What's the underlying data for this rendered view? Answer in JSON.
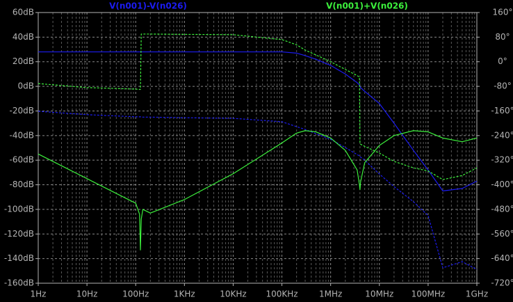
{
  "chart_data": {
    "type": "bode",
    "xscale": "log",
    "grid": true,
    "x": [
      1,
      10,
      100,
      120,
      125,
      130,
      140,
      200,
      1000,
      10000,
      100000,
      200000,
      300000,
      500000,
      1000000,
      2000000,
      3500000,
      3900000,
      4000000,
      4100000,
      5000000,
      10000000,
      20000000,
      50000000,
      100000000,
      200000000,
      500000000,
      1000000000
    ],
    "xlim": [
      1,
      1000000000
    ],
    "xticks": [
      {
        "value": 1,
        "label": "1Hz"
      },
      {
        "value": 10,
        "label": "10Hz"
      },
      {
        "value": 100,
        "label": "100Hz"
      },
      {
        "value": 1000,
        "label": "1KHz"
      },
      {
        "value": 10000,
        "label": "10KHz"
      },
      {
        "value": 100000,
        "label": "100KHz"
      },
      {
        "value": 1000000,
        "label": "1MHz"
      },
      {
        "value": 10000000,
        "label": "10MHz"
      },
      {
        "value": 100000000,
        "label": "100MHz"
      },
      {
        "value": 1000000000,
        "label": "1GHz"
      }
    ],
    "ylim": [
      -160,
      60
    ],
    "yticks": [
      {
        "value": 60,
        "label": "60dB"
      },
      {
        "value": 40,
        "label": "40dB"
      },
      {
        "value": 20,
        "label": "20dB"
      },
      {
        "value": 0,
        "label": "0dB"
      },
      {
        "value": -20,
        "label": "-20dB"
      },
      {
        "value": -40,
        "label": "-40dB"
      },
      {
        "value": -60,
        "label": "-60dB"
      },
      {
        "value": -80,
        "label": "-80dB"
      },
      {
        "value": -100,
        "label": "-100dB"
      },
      {
        "value": -120,
        "label": "-120dB"
      },
      {
        "value": -140,
        "label": "-140dB"
      },
      {
        "value": -160,
        "label": "-160dB"
      }
    ],
    "y2lim": [
      -720,
      160
    ],
    "y2ticks": [
      {
        "value": 160,
        "label": "160°"
      },
      {
        "value": 80,
        "label": "80°"
      },
      {
        "value": 0,
        "label": "0°"
      },
      {
        "value": -80,
        "label": "-80°"
      },
      {
        "value": -160,
        "label": "-160°"
      },
      {
        "value": -240,
        "label": "-240°"
      },
      {
        "value": -320,
        "label": "-320°"
      },
      {
        "value": -400,
        "label": "-400°"
      },
      {
        "value": -480,
        "label": "-480°"
      },
      {
        "value": -560,
        "label": "-560°"
      },
      {
        "value": -640,
        "label": "-640°"
      },
      {
        "value": -720,
        "label": "-720°"
      }
    ],
    "series": [
      {
        "name": "V(n001)-V(n026)",
        "color": "#1c1cf0",
        "values": [
          28,
          28,
          28,
          28,
          28,
          28,
          28,
          28,
          28,
          28,
          28,
          27,
          25,
          22,
          17,
          10,
          3,
          1,
          0,
          -1,
          -4,
          -14,
          -30,
          -52,
          -68,
          -85,
          -83,
          -77
        ],
        "phase": [
          -161,
          -172,
          -179,
          -179,
          -179,
          -179,
          -180,
          -180,
          -182,
          -184,
          -195,
          -211,
          -220,
          -234,
          -252,
          -279,
          -302,
          -306,
          -308,
          -310,
          -320,
          -365,
          -406,
          -455,
          -500,
          -670,
          -650,
          -675
        ]
      },
      {
        "name": "V(n001)+V(n026)",
        "color": "#3cf03c",
        "values": [
          -55,
          -75,
          -95,
          -104,
          -133,
          -108,
          -100,
          -103,
          -92,
          -71,
          -46,
          -38,
          -36,
          -37,
          -42,
          -52,
          -68,
          -80,
          -84,
          -78,
          -62,
          -48,
          -40,
          -36,
          -37,
          -42,
          -45,
          -42
        ],
        "phase": [
          -71,
          -84,
          -89,
          -90,
          -90,
          90,
          90,
          90,
          89,
          88,
          72,
          55,
          38,
          22,
          0,
          -25,
          -45,
          -50,
          -265,
          -268,
          -275,
          -297,
          -324,
          -345,
          -355,
          -383,
          -370,
          -345
        ]
      }
    ]
  }
}
